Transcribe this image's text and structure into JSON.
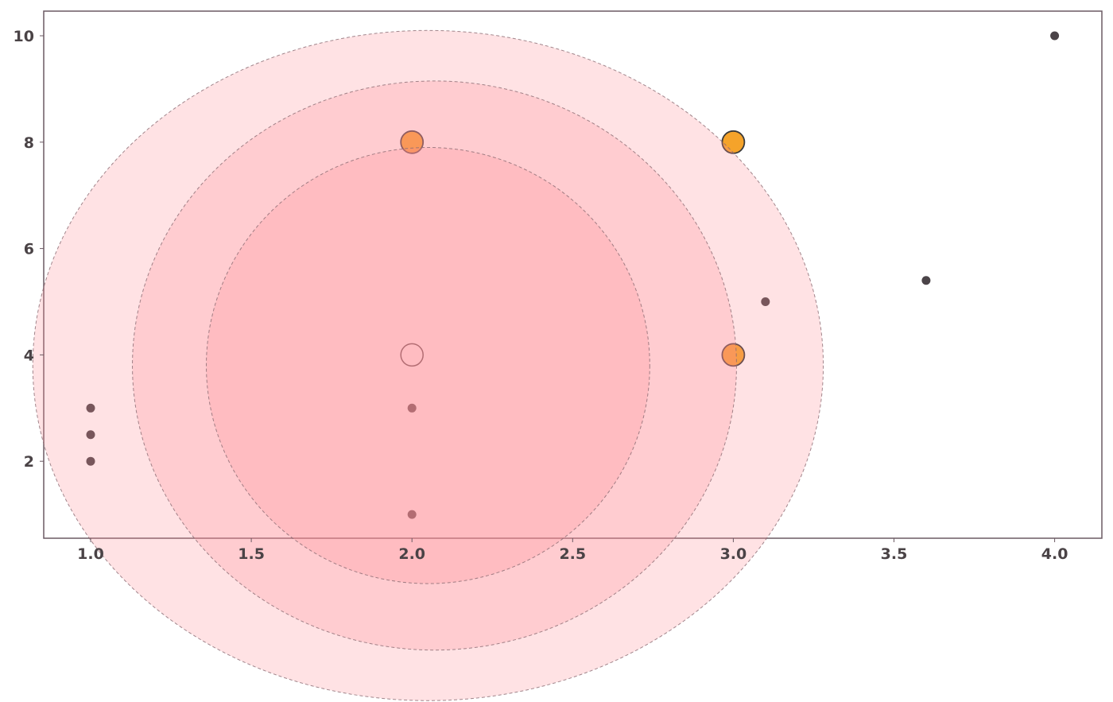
{
  "chart_data": {
    "type": "scatter",
    "title": "",
    "xlabel": "",
    "ylabel": "",
    "xlim": [
      0.85,
      4.15
    ],
    "ylim": [
      0.55,
      10.5
    ],
    "grid": false,
    "x_ticks": [
      {
        "value": 1.0,
        "label": "1.0"
      },
      {
        "value": 1.5,
        "label": "1.5"
      },
      {
        "value": 2.0,
        "label": "2.0"
      },
      {
        "value": 2.5,
        "label": "2.5"
      },
      {
        "value": 3.0,
        "label": "3.0"
      },
      {
        "value": 3.5,
        "label": "3.5"
      },
      {
        "value": 4.0,
        "label": "4.0"
      }
    ],
    "y_ticks": [
      {
        "value": 2,
        "label": "2"
      },
      {
        "value": 4,
        "label": "4"
      },
      {
        "value": 6,
        "label": "6"
      },
      {
        "value": 8,
        "label": "8"
      },
      {
        "value": 10,
        "label": "10"
      }
    ],
    "points": [
      {
        "x": 1.0,
        "y": 2.0,
        "kind": "small"
      },
      {
        "x": 1.0,
        "y": 2.5,
        "kind": "small"
      },
      {
        "x": 1.0,
        "y": 3.0,
        "kind": "small"
      },
      {
        "x": 2.0,
        "y": 1.0,
        "kind": "small"
      },
      {
        "x": 2.0,
        "y": 3.0,
        "kind": "small"
      },
      {
        "x": 3.1,
        "y": 5.0,
        "kind": "small"
      },
      {
        "x": 3.6,
        "y": 5.4,
        "kind": "small"
      },
      {
        "x": 4.0,
        "y": 10.0,
        "kind": "small"
      },
      {
        "x": 2.0,
        "y": 4.0,
        "kind": "highlight-open"
      },
      {
        "x": 2.0,
        "y": 8.0,
        "kind": "highlight"
      },
      {
        "x": 3.0,
        "y": 8.0,
        "kind": "highlight"
      },
      {
        "x": 3.0,
        "y": 4.0,
        "kind": "highlight"
      }
    ],
    "overlays": [
      {
        "center_x": 2.05,
        "center_y": 3.8,
        "radius_x": 1.23,
        "radius_y": 6.3
      },
      {
        "center_x": 2.07,
        "center_y": 3.8,
        "radius_x": 0.94,
        "radius_y": 5.35
      },
      {
        "center_x": 2.05,
        "center_y": 3.8,
        "radius_x": 0.69,
        "radius_y": 4.1
      }
    ],
    "colors": {
      "small_point": "#4b4448",
      "highlight_point": "#f5a32a",
      "highlight_edge": "#3a3a3a",
      "overlay_fill": "#ff8a95",
      "overlay_stroke": "#8a6a72"
    }
  }
}
